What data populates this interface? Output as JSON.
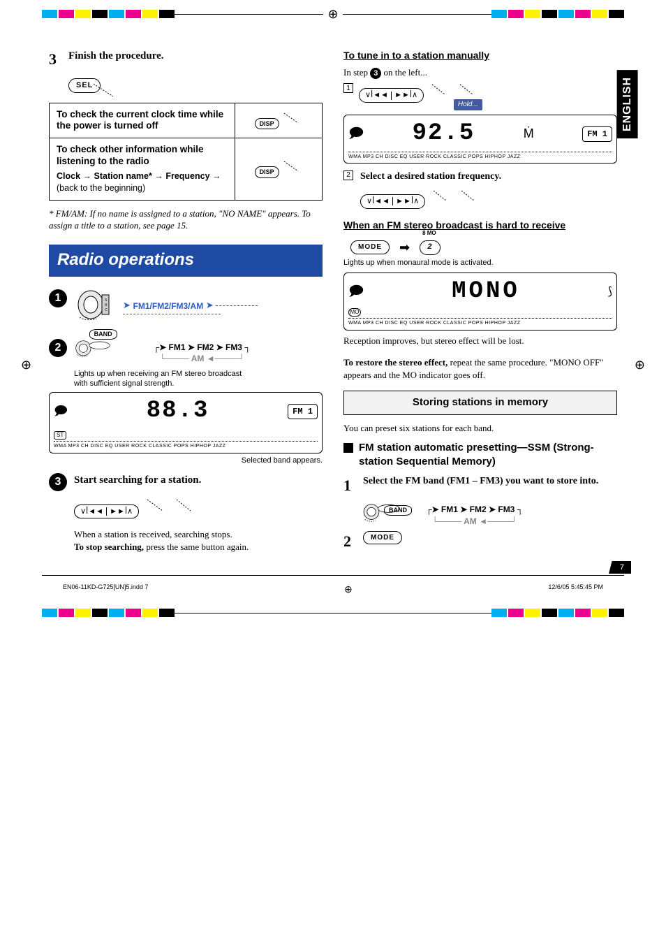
{
  "crop_colors": [
    "#00aeef",
    "#ec008c",
    "#fff200",
    "#000000",
    "#00aeef",
    "#ec008c",
    "#fff200",
    "#000000"
  ],
  "lang_tab": "ENGLISH",
  "page_number": "7",
  "left": {
    "step3": {
      "num": "3",
      "text": "Finish the procedure.",
      "button": "SEL"
    },
    "table": {
      "row1_title": "To check the current clock time while the power is turned off",
      "row1_btn": "DISP",
      "row2_title": "To check other information while listening to the radio",
      "row2_sub_prefix": "Clock",
      "row2_sub_mid1": "Station name*",
      "row2_sub_mid2": "Frequency",
      "row2_sub_end": "(back to the beginning)",
      "row2_btn": "DISP"
    },
    "footnote": "* FM/AM: If no name is assigned to a station, \"NO NAME\" appears. To assign a title to a station, see page 15.",
    "banner": "Radio operations",
    "circ1": "1",
    "chain1": "FM1/FM2/FM3/AM",
    "circ2": "2",
    "band_label": "BAND",
    "chain2": {
      "a": "FM1",
      "b": "FM2",
      "c": "FM3",
      "d": "AM"
    },
    "caption_stereo": "Lights up when receiving an FM stereo broadcast with sufficient signal strength.",
    "display": {
      "freq": "88.3",
      "band": "FM 1",
      "icons": "WMA  MP3  CH  DISC   EQ USER ROCK CLASSIC POPS HIPHOP JAZZ",
      "st": "ST"
    },
    "caption_band": "Selected band appears.",
    "circ3": "3",
    "step3b": "Start searching for a station.",
    "para_received": "When a station is received, searching stops.",
    "para_stop_bold": "To stop searching,",
    "para_stop_rest": " press the same button again."
  },
  "right": {
    "h_tune": "To tune in to a station manually",
    "tune_lead_a": "In step ",
    "tune_lead_circ": "3",
    "tune_lead_b": " on the left...",
    "box1": "1",
    "hold": "Hold...",
    "display1": {
      "freq": "92.5",
      "band": "FM 1",
      "icons": "WMA  MP3  CH  DISC   EQ USER ROCK CLASSIC POPS HIPHOP JAZZ"
    },
    "box2": "2",
    "step2_text": "Select a desired station frequency.",
    "h_hard": "When an FM stereo broadcast is hard to receive",
    "mode_btn": "MODE",
    "mo_badge_top": "8   MO",
    "mo_badge_num": "2",
    "caption_mono": "Lights up when monaural mode is activated.",
    "display2": {
      "text": "MONO",
      "icons": "WMA  MP3  CH  DISC   EQ USER ROCK CLASSIC POPS HIPHOP JAZZ",
      "mo": "MO"
    },
    "para_reception": "Reception improves, but stereo effect will be lost.",
    "para_restore_bold": "To restore the stereo effect,",
    "para_restore_rest": " repeat the same procedure. \"MONO OFF\" appears and the MO indicator goes off.",
    "gray_bar": "Storing stations in memory",
    "preset_para": "You can preset six stations for each band.",
    "sub_ssm": "FM station automatic presetting—SSM (Strong-station Sequential Memory)",
    "step1_num": "1",
    "step1_text": "Select the FM band (FM1 – FM3) you want to store into.",
    "band_label": "BAND",
    "chain": {
      "a": "FM1",
      "b": "FM2",
      "c": "FM3",
      "d": "AM"
    },
    "step2_num": "2",
    "mode_btn2": "MODE"
  },
  "footer": {
    "left": "EN06-11KD-G725[UN]5.indd   7",
    "right": "12/6/05   5:45:45 PM"
  }
}
